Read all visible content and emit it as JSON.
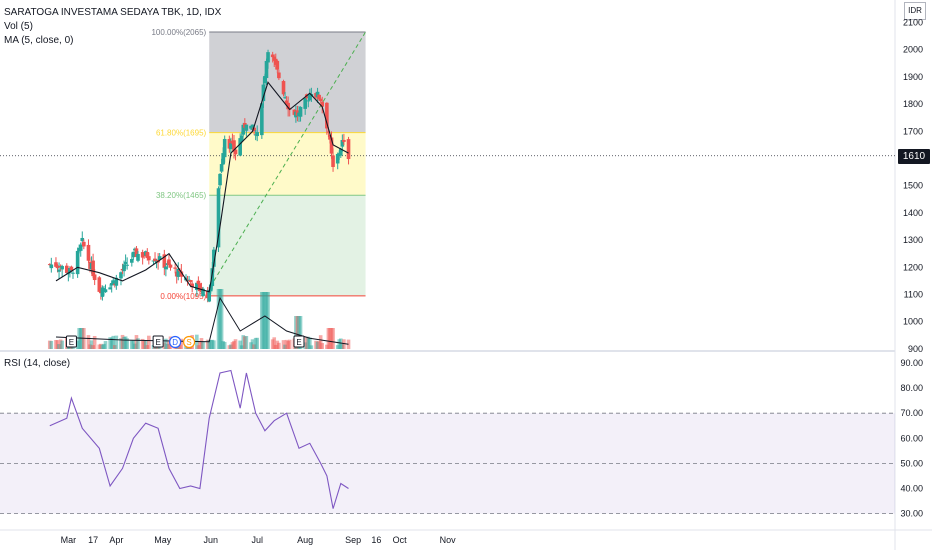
{
  "header": {
    "title": "SARATOGA INVESTAMA SEDAYA TBK, 1D, IDX",
    "vol_label": "Vol (5)",
    "ma_label": "MA (5, close, 0)",
    "rsi_label": "RSI (14, close)",
    "currency": "IDR"
  },
  "last_price_label": "1610",
  "colors": {
    "up": "#26a69a",
    "down": "#ef5350",
    "ma": "#131722",
    "rsi": "#7e57c2"
  },
  "event_markers": [
    {
      "text": "E",
      "kind": "earnings",
      "date": "2022-03-03"
    },
    {
      "text": "E",
      "kind": "earnings",
      "date": "2022-04-28"
    },
    {
      "text": "D",
      "kind": "dividend",
      "date": "2022-05-09"
    },
    {
      "text": "S",
      "kind": "split",
      "date": "2022-05-18"
    },
    {
      "text": "E",
      "kind": "earnings",
      "date": "2022-07-28"
    }
  ],
  "chart_data": [
    {
      "type": "candlestick",
      "title": "SARATOGA INVESTAMA SEDAYA TBK, 1D, IDX",
      "y_ticks": [
        "2100",
        "2000",
        "1900",
        "1800",
        "1700",
        "1600",
        "1500",
        "1400",
        "1300",
        "1200",
        "1100",
        "1000",
        "900"
      ],
      "x_ticks": [
        "Mar",
        "17",
        "Apr",
        "May",
        "Jun",
        "Jul",
        "Aug",
        "Sep",
        "16",
        "Oct",
        "Nov"
      ],
      "ylim": [
        900,
        2120
      ],
      "x_range": [
        "2022-02-17",
        "2022-11-02"
      ],
      "series": [
        {
          "name": "Price (close)",
          "type": "candlestick",
          "x": [
            "2022-02-21",
            "2022-03-03",
            "2022-03-10",
            "2022-03-21",
            "2022-03-31",
            "2022-04-13",
            "2022-04-25",
            "2022-05-05",
            "2022-05-16",
            "2022-05-25",
            "2022-05-31",
            "2022-06-03",
            "2022-06-06",
            "2022-06-10",
            "2022-06-17",
            "2022-06-24",
            "2022-07-01",
            "2022-07-08",
            "2022-07-15",
            "2022-07-22",
            "2022-07-28",
            "2022-08-05",
            "2022-08-11",
            "2022-08-16",
            "2022-08-19",
            "2022-08-25",
            "2022-08-29"
          ],
          "values": [
            1210,
            1180,
            1290,
            1120,
            1150,
            1250,
            1240,
            1200,
            1160,
            1120,
            1100,
            1250,
            1500,
            1680,
            1620,
            1740,
            1680,
            2010,
            1900,
            1780,
            1760,
            1850,
            1820,
            1700,
            1560,
            1660,
            1610
          ]
        },
        {
          "name": "MA (5, close, 0)",
          "type": "line",
          "x": [
            "2022-02-21",
            "2022-03-07",
            "2022-03-21",
            "2022-04-05",
            "2022-04-20",
            "2022-05-05",
            "2022-05-19",
            "2022-05-31",
            "2022-06-07",
            "2022-06-14",
            "2022-06-28",
            "2022-07-08",
            "2022-07-22",
            "2022-08-04",
            "2022-08-12",
            "2022-08-19",
            "2022-08-29"
          ],
          "values": [
            1150,
            1200,
            1180,
            1150,
            1190,
            1250,
            1130,
            1110,
            1350,
            1620,
            1700,
            1880,
            1780,
            1840,
            1790,
            1650,
            1620
          ]
        },
        {
          "name": "Vol (5)",
          "type": "bar",
          "x": [
            "2022-03-10",
            "2022-05-31",
            "2022-06-06",
            "2022-07-06",
            "2022-07-28",
            "2022-08-18"
          ],
          "values": [
            0.35,
            0.15,
            1.0,
            0.95,
            0.55,
            0.35
          ]
        }
      ],
      "annotations": [
        {
          "label": "100.00%(2065)",
          "value": 2065
        },
        {
          "label": "61.80%(1695)",
          "value": 1695
        },
        {
          "label": "38.20%(1465)",
          "value": 1465
        },
        {
          "label": "0.00%(1095)",
          "value": 1095
        }
      ],
      "last_price": 1610,
      "grid": false
    },
    {
      "type": "line",
      "title": "RSI (14, close)",
      "y_ticks": [
        "90.00",
        "80.00",
        "70.00",
        "60.00",
        "50.00",
        "40.00",
        "30.00"
      ],
      "ylim": [
        27,
        93
      ],
      "bands": [
        70,
        50,
        30
      ],
      "series": [
        {
          "name": "RSI (14, close)",
          "x": [
            "2022-02-17",
            "2022-02-28",
            "2022-03-03",
            "2022-03-10",
            "2022-03-21",
            "2022-03-28",
            "2022-04-05",
            "2022-04-12",
            "2022-04-20",
            "2022-04-28",
            "2022-05-05",
            "2022-05-12",
            "2022-05-19",
            "2022-05-25",
            "2022-05-31",
            "2022-06-07",
            "2022-06-14",
            "2022-06-20",
            "2022-06-24",
            "2022-06-30",
            "2022-07-06",
            "2022-07-12",
            "2022-07-20",
            "2022-07-28",
            "2022-08-04",
            "2022-08-11",
            "2022-08-15",
            "2022-08-19",
            "2022-08-24",
            "2022-08-29"
          ],
          "values": [
            65,
            68,
            76,
            64,
            56,
            41,
            48,
            60,
            66,
            64,
            48,
            40,
            41,
            40,
            68,
            86,
            87,
            72,
            86,
            70,
            63,
            67,
            70,
            56,
            58,
            50,
            45,
            32,
            42,
            40
          ]
        }
      ],
      "grid": false
    }
  ]
}
